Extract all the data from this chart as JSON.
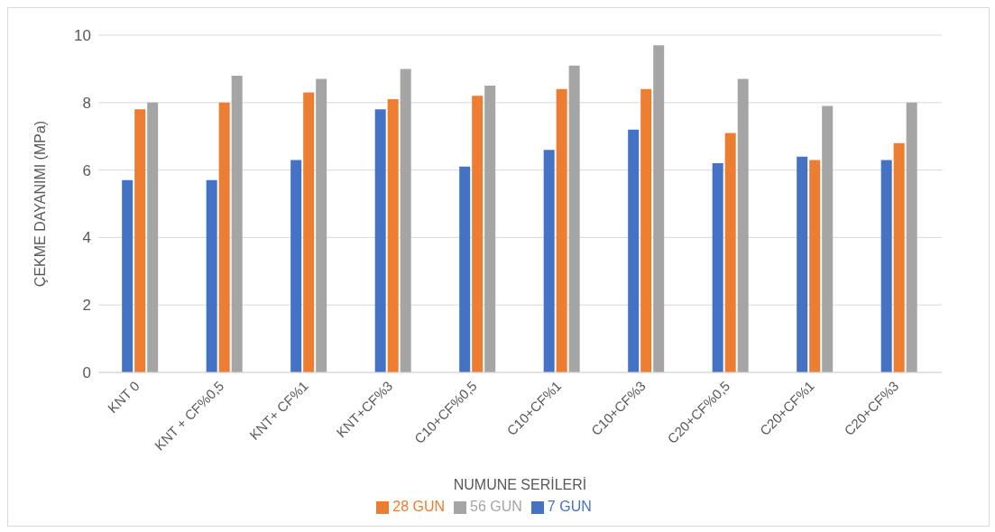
{
  "chart_data": {
    "type": "bar",
    "xlabel": "NUMUNE SERİLERİ",
    "ylabel": "ÇEKME DAYANIMI (MPa)",
    "categories": [
      "KNT 0",
      "KNT + CF%0,5",
      "KNT+ CF%1",
      "KNT+CF%3",
      "C10+CF%0,5",
      "C10+CF%1",
      "C10+CF%3",
      "C20+CF%0,5",
      "C20+CF%1",
      "C20+CF%3"
    ],
    "series": [
      {
        "name": "7 GUN",
        "color": "#4472c4",
        "values": [
          5.7,
          5.7,
          6.3,
          7.8,
          6.1,
          6.6,
          7.2,
          6.2,
          6.4,
          6.3
        ]
      },
      {
        "name": "28 GUN",
        "color": "#ed7d31",
        "values": [
          7.8,
          8.0,
          8.3,
          8.1,
          8.2,
          8.4,
          8.4,
          7.1,
          6.3,
          6.8
        ]
      },
      {
        "name": "56 GUN",
        "color": "#a5a5a5",
        "values": [
          8.0,
          8.8,
          8.7,
          9.0,
          8.5,
          9.1,
          9.7,
          8.7,
          7.9,
          8.0
        ]
      }
    ],
    "ylim": [
      0,
      10
    ],
    "yticks": [
      0,
      2,
      4,
      6,
      8,
      10
    ],
    "grid": "y",
    "legend": "bottom"
  }
}
